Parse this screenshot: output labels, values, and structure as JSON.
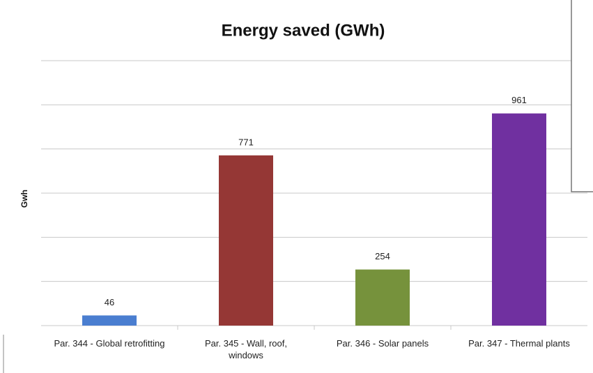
{
  "chart_data": {
    "type": "bar",
    "title": "Energy saved (GWh)",
    "y_label": "Gwh",
    "categories": [
      "Par. 344 - Global retrofitting",
      "Par. 345 - Wall, roof, windows",
      "Par. 346 - Solar panels",
      "Par. 347 - Thermal plants"
    ],
    "values": [
      46,
      771,
      254,
      961
    ],
    "colors": [
      "#4a7ed0",
      "#953735",
      "#76923c",
      "#7030a0"
    ],
    "ylim": [
      0,
      1200
    ],
    "yticks": [
      0,
      200,
      400,
      600,
      800,
      1000,
      1200
    ],
    "grid": true
  }
}
